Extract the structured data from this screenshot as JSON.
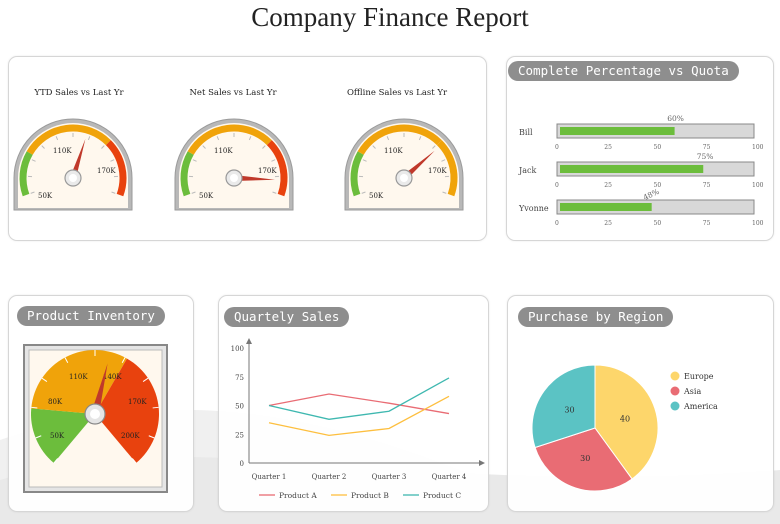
{
  "page": {
    "title": "Company Finance Report"
  },
  "gauges": [
    {
      "title": "YTD Sales vs Last Yr",
      "labels": [
        "50K",
        "110K",
        "170K"
      ],
      "value_fraction": 0.58
    },
    {
      "title": "Net Sales vs Last Yr",
      "labels": [
        "50K",
        "110K",
        "170K"
      ],
      "value_fraction": 0.92
    },
    {
      "title": "Offline Sales vs Last Yr",
      "labels": [
        "50K",
        "110K",
        "170K"
      ],
      "value_fraction": 0.72
    }
  ],
  "quota": {
    "title": "Complete Percentage vs Quota",
    "rows": [
      {
        "name": "Bill",
        "value": 60,
        "value_label": "60%"
      },
      {
        "name": "Jack",
        "value": 75,
        "value_label": "75%"
      },
      {
        "name": "Yvonne",
        "value": 48,
        "value_label": "48%"
      }
    ],
    "ticks": [
      "0",
      "25",
      "50",
      "75",
      "100"
    ]
  },
  "inventory": {
    "title": "Product Inventory",
    "labels": [
      "50K",
      "80K",
      "110K",
      "140K",
      "170K",
      "200K"
    ],
    "value_fraction": 0.55
  },
  "quarterly": {
    "title": "Quartely Sales"
  },
  "region": {
    "title": "Purchase by Region"
  },
  "colors": {
    "green": "#6cbd3c",
    "yellow": "#f0a30a",
    "red": "#e8420e",
    "pink": "#e96c74",
    "gold": "#fdd66b",
    "teal": "#5bc3c4"
  },
  "chart_data": [
    {
      "type": "line",
      "title": "Quartely Sales",
      "categories": [
        "Quarter 1",
        "Quarter 2",
        "Quarter 3",
        "Quarter 4"
      ],
      "ylim": [
        0,
        100
      ],
      "yticks": [
        "0",
        "25",
        "50",
        "75",
        "100"
      ],
      "series": [
        {
          "name": "Product A",
          "values": [
            50,
            60,
            52,
            43
          ],
          "color": "#e96c74"
        },
        {
          "name": "Product B",
          "values": [
            35,
            24,
            30,
            58
          ],
          "color": "#fdbf3f"
        },
        {
          "name": "Product C",
          "values": [
            50,
            38,
            45,
            74
          ],
          "color": "#3fb8b0"
        }
      ]
    },
    {
      "type": "pie",
      "title": "Purchase by Region",
      "categories": [
        "Europe",
        "Asia",
        "America"
      ],
      "values": [
        40,
        30,
        30
      ],
      "value_labels": [
        "40",
        "30",
        "30"
      ],
      "colors": [
        "#fdd66b",
        "#e96c74",
        "#5bc3c4"
      ]
    },
    {
      "type": "bar",
      "title": "Complete Percentage vs Quota",
      "categories": [
        "Bill",
        "Jack",
        "Yvonne"
      ],
      "values": [
        60,
        75,
        48
      ],
      "xlim": [
        0,
        100
      ]
    }
  ]
}
